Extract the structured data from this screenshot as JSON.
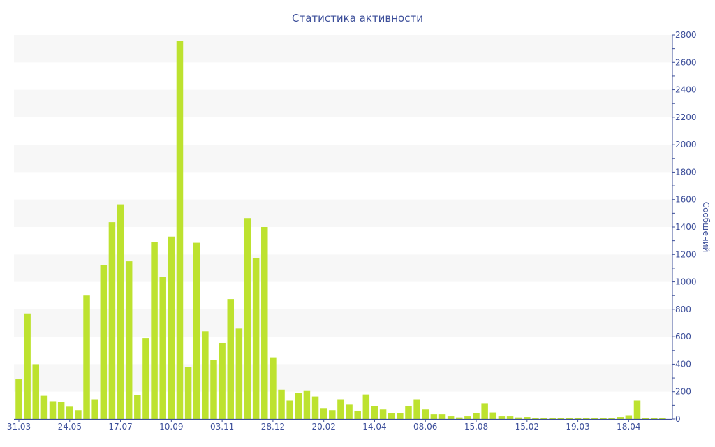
{
  "chart_data": {
    "type": "bar",
    "title": "Статистика активности",
    "ylabel": "Сообщений",
    "y_axis_side": "right",
    "ylim": [
      0,
      2800
    ],
    "y_ticks": [
      0,
      200,
      400,
      600,
      800,
      1000,
      1200,
      1400,
      1600,
      1800,
      2000,
      2200,
      2400,
      2600,
      2800
    ],
    "grid": "alternating horizontal bands",
    "legend": "none",
    "colors": {
      "bar": "#bde22f",
      "axis": "#3d4f9a",
      "band": "#f7f7f7"
    },
    "x_tick_labels": [
      {
        "index": 0,
        "label": "31.03"
      },
      {
        "index": 6,
        "label": "24.05"
      },
      {
        "index": 12,
        "label": "17.07"
      },
      {
        "index": 18,
        "label": "10.09"
      },
      {
        "index": 24,
        "label": "03.11"
      },
      {
        "index": 30,
        "label": "28.12"
      },
      {
        "index": 36,
        "label": "20.02"
      },
      {
        "index": 42,
        "label": "14.04"
      },
      {
        "index": 48,
        "label": "08.06"
      },
      {
        "index": 54,
        "label": "15.08"
      },
      {
        "index": 60,
        "label": "15.02"
      },
      {
        "index": 66,
        "label": "19.03"
      },
      {
        "index": 72,
        "label": "18.04"
      }
    ],
    "values": [
      290,
      770,
      400,
      170,
      130,
      125,
      90,
      65,
      900,
      145,
      1125,
      1435,
      1565,
      1150,
      175,
      590,
      1290,
      1035,
      1330,
      2755,
      380,
      1285,
      640,
      430,
      555,
      875,
      660,
      1465,
      1175,
      1400,
      450,
      215,
      135,
      190,
      205,
      165,
      80,
      65,
      145,
      105,
      60,
      180,
      95,
      70,
      45,
      45,
      95,
      145,
      70,
      35,
      35,
      20,
      12,
      20,
      45,
      115,
      48,
      20,
      20,
      12,
      15,
      6,
      6,
      8,
      10,
      6,
      10,
      6,
      6,
      8,
      10,
      15,
      28,
      135,
      8,
      8,
      10
    ]
  }
}
